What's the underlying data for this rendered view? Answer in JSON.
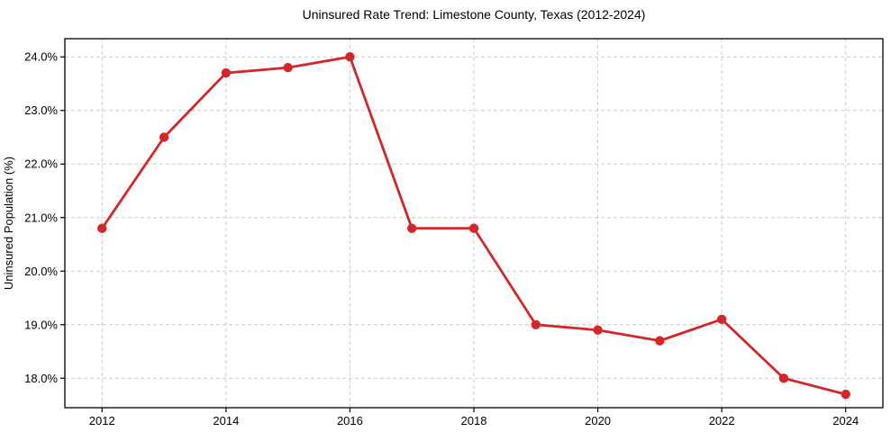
{
  "figure": {
    "background": "#ffffff"
  },
  "chart_data": {
    "type": "line",
    "title": "Uninsured Rate Trend: Limestone County, Texas (2012-2024)",
    "xlabel": "",
    "ylabel": "Uninsured Population (%)",
    "x": [
      2012,
      2013,
      2014,
      2015,
      2016,
      2017,
      2018,
      2019,
      2020,
      2021,
      2022,
      2023,
      2024
    ],
    "values": [
      20.8,
      22.5,
      23.7,
      23.8,
      24.0,
      20.8,
      20.8,
      19.0,
      18.9,
      18.7,
      19.1,
      18.0,
      17.7
    ],
    "xlim": [
      2011.4,
      2024.6
    ],
    "ylim": [
      17.45,
      24.34
    ],
    "xticks": {
      "values": [
        2012,
        2014,
        2016,
        2018,
        2020,
        2022,
        2024
      ],
      "labels": [
        "2012",
        "2014",
        "2016",
        "2018",
        "2020",
        "2022",
        "2024"
      ]
    },
    "yticks": {
      "values": [
        18,
        19,
        20,
        21,
        22,
        23,
        24
      ],
      "labels": [
        "18.0%",
        "19.0%",
        "20.0%",
        "21.0%",
        "22.0%",
        "23.0%",
        "24.0%"
      ]
    },
    "grid": {
      "visible": true,
      "style": "dashed",
      "color": "#cccccc"
    },
    "legend": {
      "visible": false
    },
    "style": {
      "line_color": "#d62728",
      "marker": "circle",
      "marker_color": "#d62728",
      "marker_radius": 5.2,
      "line_width": 2.8,
      "spine_color": "#000000",
      "tick_color": "#000000",
      "text_color": "#000000",
      "plot_background": "#ffffff"
    }
  }
}
